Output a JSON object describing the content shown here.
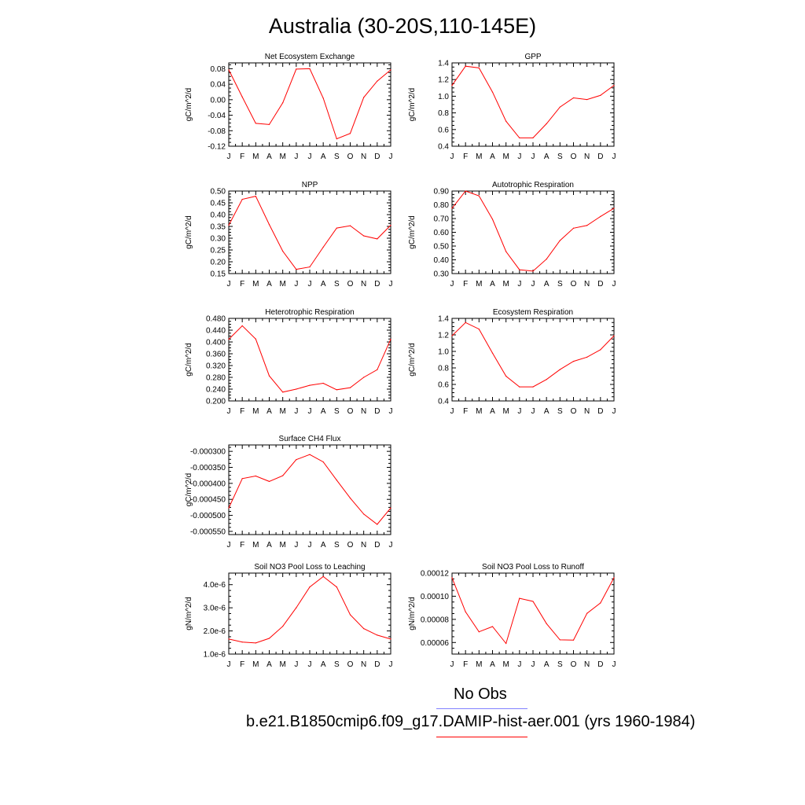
{
  "title": "Australia (30-20S,110-145E)",
  "month_labels": [
    "J",
    "F",
    "M",
    "A",
    "M",
    "J",
    "J",
    "A",
    "S",
    "O",
    "N",
    "D",
    "J"
  ],
  "colors": {
    "model": "#ff0000",
    "obs": "#8080ff"
  },
  "legend": {
    "obs_label": "No Obs",
    "model_label": "b.e21.B1850cmip6.f09_g17.DAMIP-hist-aer.001 (yrs 1960-1984)"
  },
  "chart_data": [
    {
      "type": "line",
      "title": "Net Ecosystem Exchange",
      "ylabel": "gC/m^2/d",
      "ylim": [
        -0.12,
        0.095
      ],
      "yticks": [
        -0.12,
        -0.08,
        -0.04,
        0.0,
        0.04,
        0.08
      ],
      "ytick_labels": [
        "-0.12",
        "-0.08",
        "-0.04",
        "0.00",
        "0.04",
        "0.08"
      ],
      "values": [
        0.077,
        0.007,
        -0.061,
        -0.064,
        -0.008,
        0.079,
        0.08,
        0.004,
        -0.101,
        -0.087,
        0.006,
        0.048,
        0.077
      ]
    },
    {
      "type": "line",
      "title": "GPP",
      "ylabel": "gC/m^2/d",
      "ylim": [
        0.4,
        1.4
      ],
      "yticks": [
        0.4,
        0.6,
        0.8,
        1.0,
        1.2,
        1.4
      ],
      "ytick_labels": [
        "0.4",
        "0.6",
        "0.8",
        "1.0",
        "1.2",
        "1.4"
      ],
      "values": [
        1.13,
        1.36,
        1.34,
        1.05,
        0.7,
        0.5,
        0.5,
        0.67,
        0.87,
        0.98,
        0.96,
        1.01,
        1.13
      ]
    },
    {
      "type": "line",
      "title": "NPP",
      "ylabel": "gC/m^2/d",
      "ylim": [
        0.15,
        0.5
      ],
      "yticks": [
        0.15,
        0.2,
        0.25,
        0.3,
        0.35,
        0.4,
        0.45,
        0.5
      ],
      "ytick_labels": [
        "0.15",
        "0.20",
        "0.25",
        "0.30",
        "0.35",
        "0.40",
        "0.45",
        "0.50"
      ],
      "values": [
        0.355,
        0.465,
        0.478,
        0.358,
        0.245,
        0.168,
        0.178,
        0.262,
        0.343,
        0.353,
        0.31,
        0.297,
        0.355
      ]
    },
    {
      "type": "line",
      "title": "Autotrophic Respiration",
      "ylabel": "gC/m^2/d",
      "ylim": [
        0.3,
        0.9
      ],
      "yticks": [
        0.3,
        0.4,
        0.5,
        0.6,
        0.7,
        0.8,
        0.9
      ],
      "ytick_labels": [
        "0.30",
        "0.40",
        "0.50",
        "0.60",
        "0.70",
        "0.80",
        "0.90"
      ],
      "values": [
        0.775,
        0.9,
        0.865,
        0.695,
        0.46,
        0.328,
        0.318,
        0.405,
        0.54,
        0.63,
        0.65,
        0.715,
        0.775
      ]
    },
    {
      "type": "line",
      "title": "Heterotrophic Respiration",
      "ylabel": "gC/m^2/d",
      "ylim": [
        0.2,
        0.48
      ],
      "yticks": [
        0.2,
        0.24,
        0.28,
        0.32,
        0.36,
        0.4,
        0.44,
        0.48
      ],
      "ytick_labels": [
        "0.200",
        "0.240",
        "0.280",
        "0.320",
        "0.360",
        "0.400",
        "0.440",
        "0.480"
      ],
      "values": [
        0.409,
        0.455,
        0.41,
        0.285,
        0.23,
        0.24,
        0.253,
        0.26,
        0.238,
        0.245,
        0.28,
        0.306,
        0.409
      ]
    },
    {
      "type": "line",
      "title": "Ecosystem Respiration",
      "ylabel": "gC/m^2/d",
      "ylim": [
        0.4,
        1.4
      ],
      "yticks": [
        0.4,
        0.6,
        0.8,
        1.0,
        1.2,
        1.4
      ],
      "ytick_labels": [
        "0.4",
        "0.6",
        "0.8",
        "1.0",
        "1.2",
        "1.4"
      ],
      "values": [
        1.19,
        1.35,
        1.27,
        0.98,
        0.7,
        0.57,
        0.57,
        0.66,
        0.78,
        0.88,
        0.93,
        1.02,
        1.19
      ]
    },
    {
      "type": "line",
      "title": "Surface CH4 Flux",
      "ylabel": "gC/m^2/d",
      "ylim": [
        -0.00056,
        -0.00028
      ],
      "yticks": [
        -0.00055,
        -0.0005,
        -0.00045,
        -0.0004,
        -0.00035,
        -0.0003
      ],
      "ytick_labels": [
        "-0.000550",
        "-0.000500",
        "-0.000450",
        "-0.000400",
        "-0.000350",
        "-0.000300"
      ],
      "values": [
        -0.000477,
        -0.000385,
        -0.000377,
        -0.000394,
        -0.000376,
        -0.000326,
        -0.00031,
        -0.000333,
        -0.00039,
        -0.000446,
        -0.000496,
        -0.000528,
        -0.000477
      ]
    },
    {
      "type": "line",
      "title": "Soil NO3 Pool Loss to Leaching",
      "ylabel": "gN/m^2/d",
      "ylim": [
        1e-06,
        4.5e-06
      ],
      "yticks": [
        1e-06,
        2e-06,
        3e-06,
        4e-06
      ],
      "ytick_labels": [
        "1.0e-6",
        "2.0e-6",
        "3.0e-6",
        "4.0e-6"
      ],
      "values": [
        1.65e-06,
        1.52e-06,
        1.48e-06,
        1.68e-06,
        2.2e-06,
        3e-06,
        3.9e-06,
        4.35e-06,
        3.9e-06,
        2.7e-06,
        2.1e-06,
        1.82e-06,
        1.65e-06
      ]
    },
    {
      "type": "line",
      "title": "Soil NO3 Pool Loss to Runoff",
      "ylabel": "gN/m^2/d",
      "ylim": [
        5e-05,
        0.00012
      ],
      "yticks": [
        6e-05,
        8e-05,
        0.0001,
        0.00012
      ],
      "ytick_labels": [
        "0.00006",
        "0.00008",
        "0.00010",
        "0.00012"
      ],
      "values": [
        0.000116,
        8.65e-05,
        6.92e-05,
        7.38e-05,
        5.92e-05,
        9.82e-05,
        9.55e-05,
        7.63e-05,
        6.23e-05,
        6.21e-05,
        8.52e-05,
        9.42e-05,
        0.000116
      ]
    }
  ]
}
